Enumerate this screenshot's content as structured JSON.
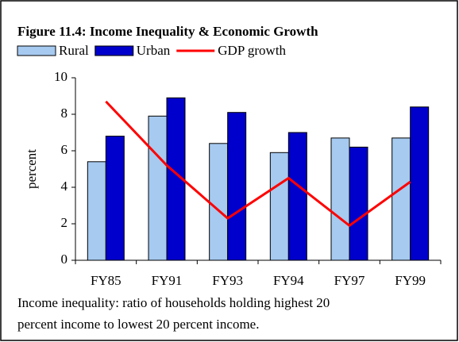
{
  "chart_data": {
    "type": "bar_line",
    "title": "Figure 11.4: Income Inequality & Economic Growth",
    "y_label": "percent",
    "categories": [
      "FY85",
      "FY91",
      "FY93",
      "FY94",
      "FY97",
      "FY99"
    ],
    "series": [
      {
        "name": "Rural",
        "type": "bar",
        "color": "#a6caf0",
        "values": [
          5.4,
          7.9,
          6.4,
          5.9,
          6.7,
          6.7
        ]
      },
      {
        "name": "Urban",
        "type": "bar",
        "color": "#0000cc",
        "values": [
          6.8,
          8.9,
          8.1,
          7.0,
          6.2,
          8.4
        ]
      },
      {
        "name": "GDP growth",
        "type": "line",
        "color": "#ff0000",
        "values": [
          8.7,
          5.2,
          2.3,
          4.5,
          1.9,
          4.3
        ]
      }
    ],
    "ylim": [
      0,
      10
    ],
    "yticks": [
      0,
      2,
      4,
      6,
      8,
      10
    ],
    "grid": false,
    "legend": "top",
    "notes": [
      "Income inequality: ratio of households holding highest 20",
      "percent income to lowest 20 percent income."
    ]
  }
}
